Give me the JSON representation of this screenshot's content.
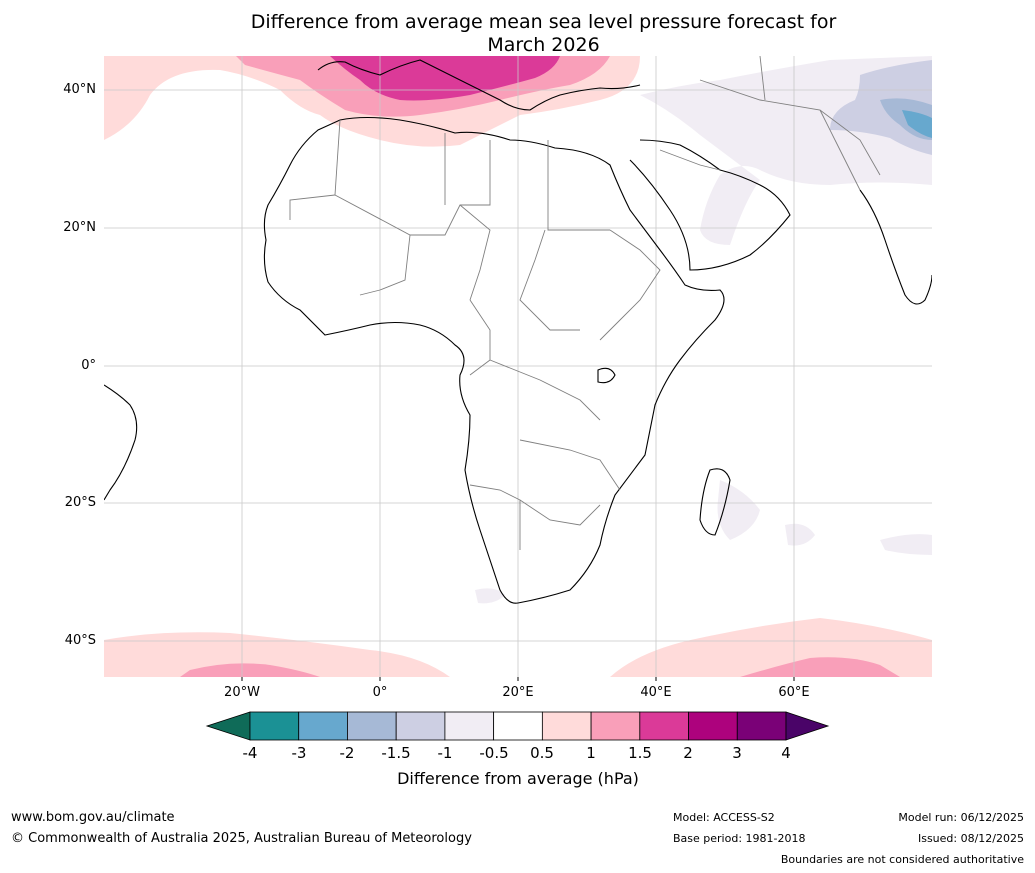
{
  "title_line1": "Difference from average mean sea level pressure forecast for",
  "title_line2": "March 2026",
  "lat_labels": [
    "40°N",
    "20°N",
    "0°",
    "20°S",
    "40°S"
  ],
  "lon_labels": [
    "20°W",
    "0°",
    "20°E",
    "40°E",
    "60°E"
  ],
  "colorbar": {
    "label": "Difference from average (hPa)",
    "ticks": [
      "-4",
      "-3",
      "-2",
      "-1.5",
      "-1",
      "-0.5",
      "0.5",
      "1",
      "1.5",
      "2",
      "3",
      "4"
    ],
    "colors": [
      "#1b9195",
      "#67a8ce",
      "#a6b9d6",
      "#cdcfe3",
      "#f1edf4",
      "#ffffff",
      "#ffdbda",
      "#f99fb9",
      "#db3a98",
      "#ad027d",
      "#7a0177"
    ],
    "under_color": "#0f6b58",
    "over_color": "#4a0468"
  },
  "footer": {
    "website": "www.bom.gov.au/climate",
    "copyright": "© Commonwealth of Australia 2025, Australian Bureau of Meteorology",
    "model": "Model: ACCESS-S2",
    "base_period": "Base period: 1981-2018",
    "model_run": "Model run: 06/12/2025",
    "issued": "Issued: 08/12/2025",
    "boundaries_note": "Boundaries are not considered authoritative"
  }
}
